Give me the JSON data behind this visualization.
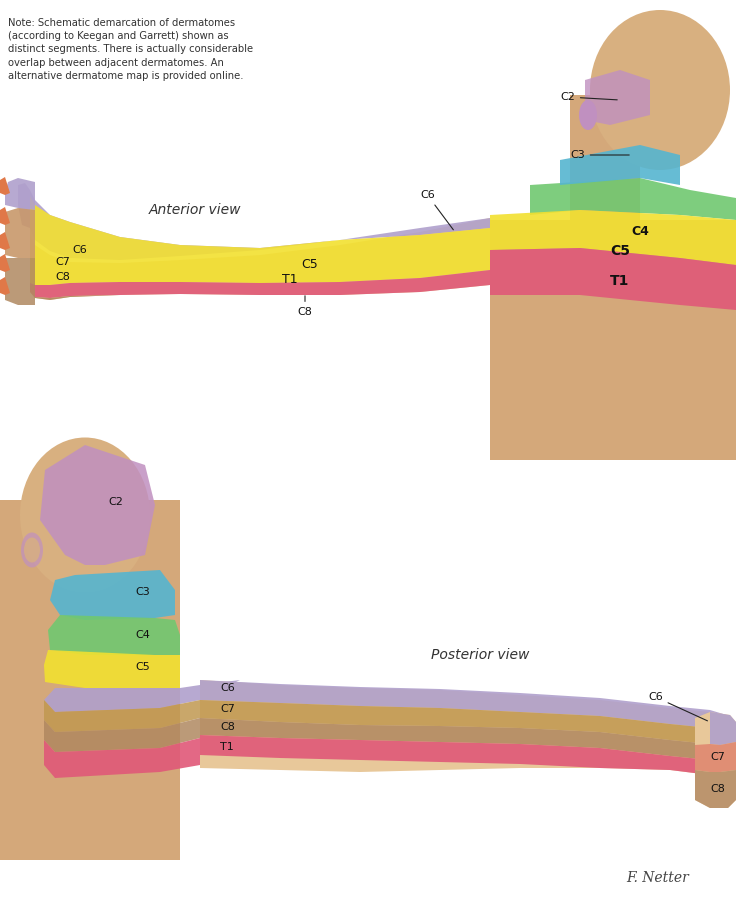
{
  "note_text": "Note: Schematic demarcation of dermatomes\n(according to Keegan and Garrett) shown as\ndistinct segments. There is actually considerable\noverlap between adjacent dermatomes. An\nalternative dermatome map is provided online.",
  "anterior_view_label": "Anterior view",
  "posterior_view_label": "Posterior view",
  "signature": "F. Netter",
  "background_color": "#FFFFFF",
  "colors": {
    "C2_purple": "#C090C0",
    "C3_blue": "#55B5D0",
    "C4_green": "#70C870",
    "C5_yellow": "#F2E030",
    "C6_lavender": "#B0A0CC",
    "C7_tan": "#C09850",
    "C8_brown": "#B08860",
    "T1_pink": "#E05878",
    "skin": "#DDB88A",
    "skin_light": "#E8C89A",
    "skin_dark": "#C8986A",
    "skin_torso": "#D4A87A",
    "skin_head": "#D8B080",
    "C7_post_salmon": "#E08870",
    "C8_post_tan": "#B8906A"
  }
}
